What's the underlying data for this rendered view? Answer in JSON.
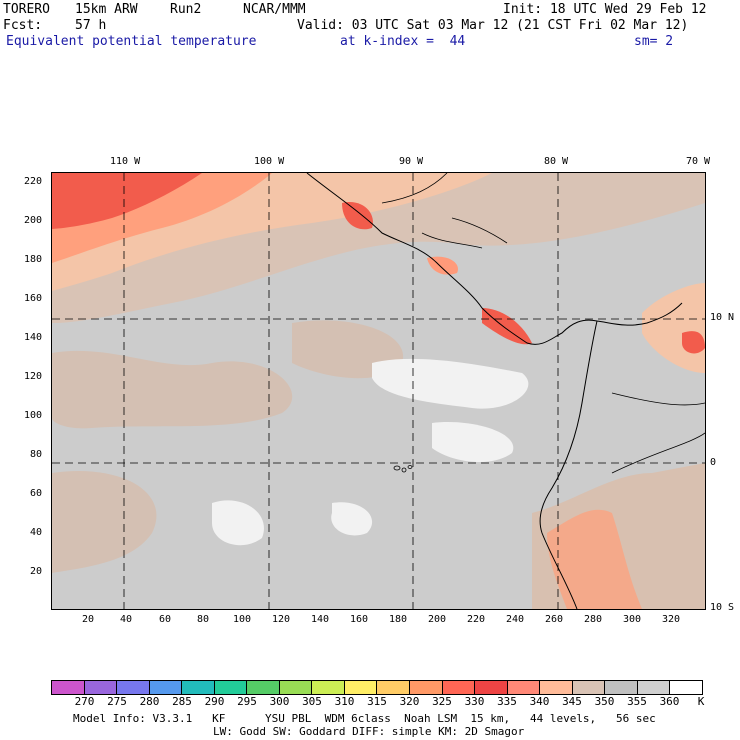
{
  "header": {
    "model": "TORERO",
    "resolution": "15km ARW",
    "run": "Run2",
    "org": "NCAR/MMM",
    "init": "Init: 18 UTC Wed 29 Feb 12",
    "fcst_label": "Fcst:",
    "fcst_value": "57 h",
    "valid": "Valid: 03 UTC Sat 03 Mar 12 (21 CST Fri 02 Mar 12)",
    "field": "Equivalent potential temperature",
    "level": "at k-index =  44",
    "smooth": "sm= 2"
  },
  "axes": {
    "x_ticks": [
      "20",
      "40",
      "60",
      "80",
      "100",
      "120",
      "140",
      "160",
      "180",
      "200",
      "220",
      "240",
      "260",
      "280",
      "300",
      "320"
    ],
    "y_ticks": [
      "220",
      "200",
      "180",
      "160",
      "140",
      "120",
      "100",
      "80",
      "60",
      "40",
      "20"
    ],
    "lon_labels": [
      "110 W",
      "100 W",
      "90 W",
      "80 W",
      "70 W"
    ],
    "lat_labels": [
      "10 N",
      "0",
      "10 S"
    ]
  },
  "colorbar": {
    "labels": [
      "270",
      "275",
      "280",
      "285",
      "290",
      "295",
      "300",
      "305",
      "310",
      "315",
      "320",
      "325",
      "330",
      "335",
      "340",
      "345",
      "350",
      "355",
      "360"
    ],
    "unit": "K",
    "colors": [
      "#cc55cc",
      "#9966dd",
      "#7777ee",
      "#5599ee",
      "#22bbbb",
      "#22cc99",
      "#55cc66",
      "#99dd55",
      "#ccee55",
      "#ffee66",
      "#ffcc66",
      "#ff9966",
      "#ff6655",
      "#ee4444",
      "#ff8877",
      "#ffbb99",
      "#d9c3b5",
      "#c0c0c0",
      "#d0d0d0",
      "#ffffff"
    ]
  },
  "footer": {
    "line1": "Model Info: V3.3.1   KF      YSU PBL  WDM 6class  Noah LSM  15 km,   44 levels,   56 sec",
    "line2": "LW: Godd SW: Goddard DIFF: simple KM: 2D Smagor"
  }
}
